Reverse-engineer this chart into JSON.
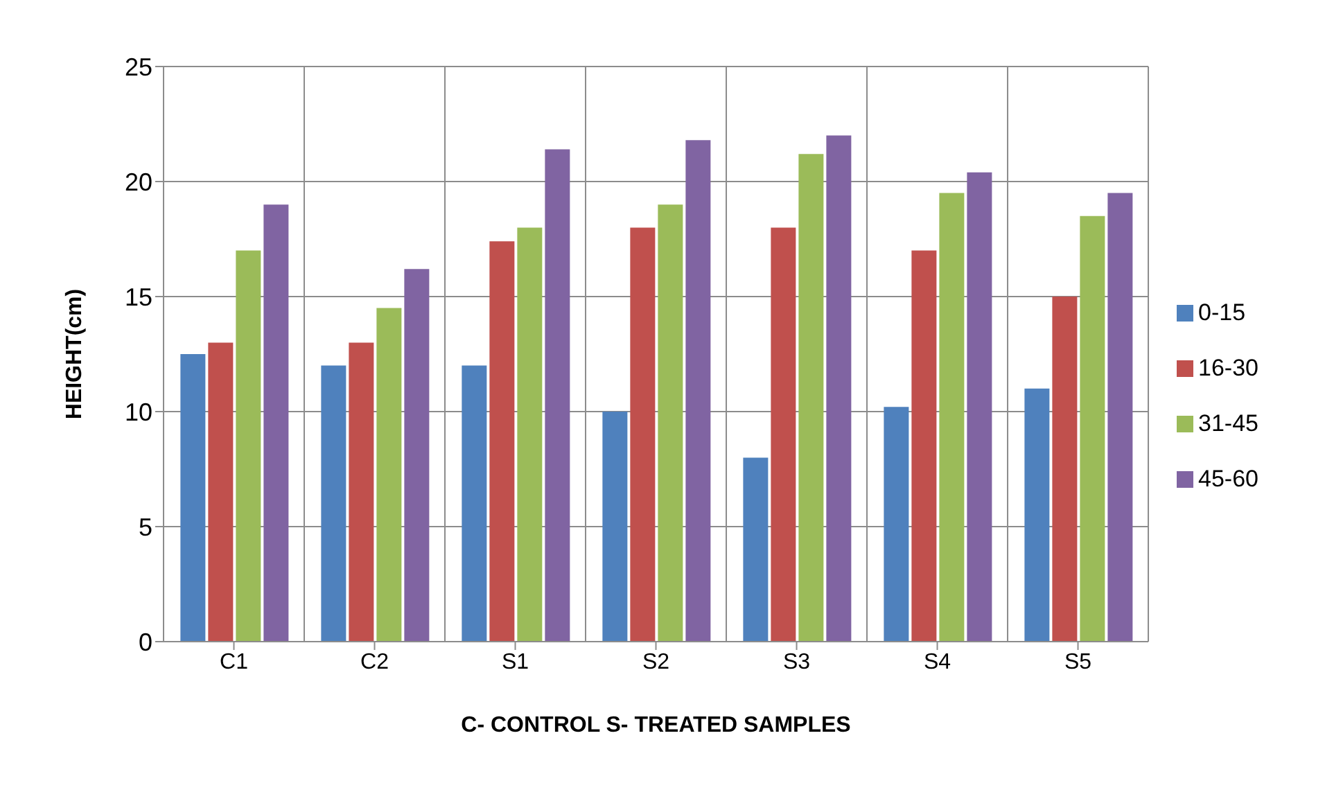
{
  "chart_data": {
    "type": "bar",
    "xlabel": "C- CONTROL S- TREATED SAMPLES",
    "ylabel": "HEIGHT(cm)",
    "categories": [
      "C1",
      "C2",
      "S1",
      "S2",
      "S3",
      "S4",
      "S5"
    ],
    "series": [
      {
        "name": "0-15",
        "color": "#4f81bd",
        "values": [
          12.5,
          12,
          12,
          10,
          8,
          10.2,
          11
        ]
      },
      {
        "name": "16-30",
        "color": "#c0504d",
        "values": [
          13,
          13,
          17.4,
          18,
          18,
          17,
          15
        ]
      },
      {
        "name": "31-45",
        "color": "#9bbb59",
        "values": [
          17,
          14.5,
          18,
          19,
          21.2,
          19.5,
          18.5
        ]
      },
      {
        "name": "45-60",
        "color": "#8064a2",
        "values": [
          19,
          16.2,
          21.4,
          21.8,
          22,
          20.4,
          19.5
        ]
      }
    ],
    "ylim": [
      0,
      25
    ],
    "yticks": [
      0,
      5,
      10,
      15,
      20,
      25
    ],
    "grid": true,
    "legend": "right"
  }
}
